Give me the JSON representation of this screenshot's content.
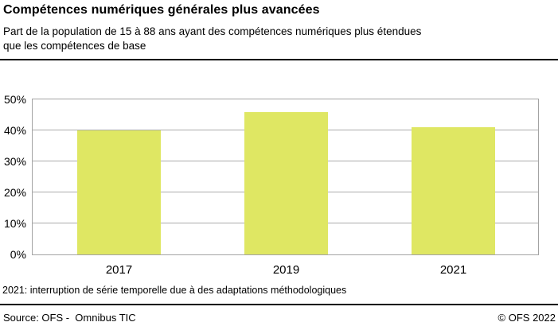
{
  "header": {
    "title": "Compétences numériques générales plus avancées",
    "subtitle_lines": [
      "Part de la population de 15 à 88 ans ayant des compétences numériques plus étendues",
      "que les compétences de base"
    ]
  },
  "chart_data": {
    "type": "bar",
    "title": "Compétences numériques générales plus avancées",
    "categories": [
      "2017",
      "2019",
      "2021"
    ],
    "values": [
      40,
      46,
      41
    ],
    "xlabel": "",
    "ylabel": "",
    "ylim": [
      0,
      50
    ],
    "yticks": [
      0,
      10,
      20,
      30,
      40,
      50
    ],
    "ytick_suffix": "%",
    "grid": true,
    "legend_position": "none",
    "bar_color": "#dfe763",
    "gridline_color": "#ababab"
  },
  "footnote": "2021: interruption de série temporelle due à des adaptations méthodologiques",
  "footer": {
    "source": "Source: OFS -  Omnibus TIC",
    "copyright": "© OFS 2022"
  }
}
